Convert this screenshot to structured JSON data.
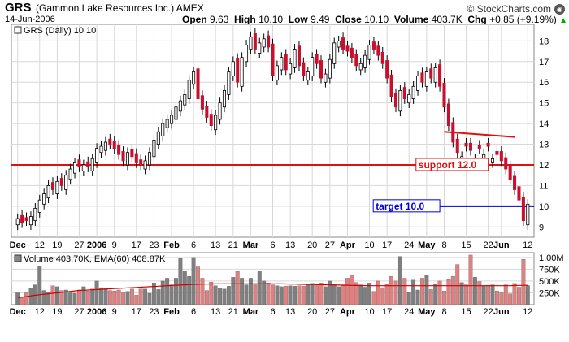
{
  "header": {
    "ticker": "GRS",
    "company": "(Gammon Lake Resources Inc.)",
    "exchange": "AMEX",
    "date": "14-Jun-2006",
    "open_label": "Open",
    "open": "9.63",
    "high_label": "High",
    "high": "10.10",
    "low_label": "Low",
    "low": "9.49",
    "close_label": "Close",
    "close": "10.10",
    "volume_label": "Volume",
    "volume": "403.7K",
    "chg_label": "Chg",
    "chg": "+0.85 (+9.19%)",
    "chg_arrow": "▲",
    "brand": "© StockCharts.com",
    "brand_icon": "stockcharts-logo-icon"
  },
  "colors": {
    "up": "#ffffff",
    "down": "#c8102e",
    "support": "#e01010",
    "target": "#0000dd",
    "trend": "#e01010",
    "vol_up": "#7f7f7f",
    "vol_down": "#e08080",
    "ema": "#d00000",
    "grid": "#d8d8d8",
    "label_bg_support": "#ffffff"
  },
  "chart_data": [
    {
      "type": "candlestick",
      "legend": "GRS (Daily) 10.10",
      "y_ticks": [
        9,
        10,
        11,
        12,
        13,
        14,
        15,
        16,
        17,
        18
      ],
      "ylim": [
        8.5,
        18.8
      ],
      "x_tick_labels": [
        "Dec",
        "12",
        "19",
        "27",
        "2006",
        "9",
        "17",
        "23",
        "Feb",
        "6",
        "13",
        "21",
        "Mar",
        "6",
        "13",
        "20",
        "27",
        "Apr",
        "10",
        "17",
        "24",
        "May",
        "8",
        "15",
        "22",
        "Jun",
        "12"
      ],
      "support": {
        "label": "support 12.0",
        "value": 12.0
      },
      "target": {
        "label": "target 10.0",
        "value": 10.0
      },
      "trendline": {
        "from": {
          "bar": 97,
          "value": 13.6
        },
        "to": {
          "bar": 113,
          "value": 13.35
        }
      },
      "closes": [
        9.4,
        9.2,
        9.3,
        9.5,
        9.9,
        10.3,
        10.6,
        11.0,
        10.8,
        11.2,
        11.0,
        11.5,
        11.8,
        12.1,
        11.9,
        12.0,
        11.9,
        12.3,
        12.8,
        12.9,
        13.1,
        13.0,
        12.8,
        12.5,
        12.2,
        12.6,
        12.4,
        12.1,
        12.0,
        12.2,
        12.6,
        13.2,
        13.6,
        14.0,
        14.2,
        14.4,
        14.8,
        15.1,
        15.4,
        16.1,
        16.5,
        15.2,
        14.7,
        14.3,
        13.9,
        14.4,
        15.0,
        15.6,
        16.5,
        17.0,
        16.0,
        17.2,
        17.8,
        18.2,
        17.6,
        17.9,
        18.1,
        17.7,
        16.3,
        16.8,
        17.2,
        16.6,
        16.9,
        17.6,
        16.8,
        16.3,
        16.5,
        17.2,
        16.9,
        16.2,
        16.4,
        17.1,
        17.9,
        18.0,
        17.6,
        17.5,
        17.2,
        16.8,
        16.9,
        17.3,
        17.8,
        17.6,
        17.3,
        16.9,
        16.2,
        15.3,
        14.8,
        15.6,
        15.2,
        15.4,
        15.8,
        16.3,
        16.0,
        16.5,
        16.2,
        16.7,
        15.8,
        14.8,
        13.9,
        13.1,
        12.6,
        12.4,
        12.9,
        12.7,
        12.3,
        12.8,
        12.5,
        12.9,
        12.3,
        12.5,
        12.2,
        11.8,
        11.3,
        10.8,
        10.3,
        9.3,
        10.1
      ],
      "up_bars": [
        0,
        3,
        4,
        5,
        6,
        7,
        9,
        11,
        12,
        13,
        15,
        17,
        18,
        19,
        20,
        25,
        29,
        30,
        31,
        32,
        33,
        34,
        35,
        36,
        37,
        38,
        39,
        40,
        45,
        46,
        47,
        48,
        49,
        51,
        52,
        53,
        55,
        56,
        59,
        60,
        62,
        63,
        66,
        67,
        70,
        71,
        72,
        73,
        78,
        79,
        80,
        87,
        89,
        90,
        91,
        93,
        95,
        101,
        104,
        106,
        108,
        116
      ]
    },
    {
      "type": "bar",
      "legend": "Volume 403.70K, EMA(60) 408.87K",
      "y_ticks": [
        "250K",
        "500K",
        "750K",
        "1.00M"
      ],
      "tick_values": [
        250,
        500,
        750,
        1000
      ],
      "ylim": [
        0,
        1100
      ],
      "unit": "K shares",
      "ema_values": [
        150,
        160,
        170,
        185,
        200,
        210,
        220,
        230,
        240,
        250,
        260,
        270,
        280,
        290,
        300,
        305,
        310,
        315,
        320,
        325,
        330,
        335,
        340,
        345,
        350,
        355,
        360,
        365,
        370,
        375,
        380,
        385,
        390,
        395,
        400,
        405,
        410,
        415,
        420,
        425,
        430,
        432,
        434,
        436,
        438,
        440,
        440,
        440,
        440,
        440,
        440,
        440,
        440,
        440,
        440,
        440,
        440,
        440,
        440,
        440,
        440,
        438,
        436,
        434,
        432,
        430,
        428,
        426,
        424,
        422,
        420,
        418,
        416,
        414,
        412,
        410,
        408,
        406,
        404,
        402,
        400,
        400,
        400,
        400,
        400,
        400,
        400,
        400,
        400,
        400,
        400,
        400,
        400,
        400,
        400,
        400,
        400,
        400,
        400,
        400,
        400,
        400,
        400,
        400,
        400,
        400,
        400,
        400,
        400,
        400,
        400,
        400,
        400,
        405,
        408,
        409,
        409
      ],
      "values": [
        250,
        150,
        250,
        350,
        420,
        820,
        300,
        260,
        400,
        380,
        300,
        310,
        250,
        240,
        310,
        380,
        290,
        330,
        500,
        360,
        340,
        300,
        290,
        310,
        250,
        280,
        330,
        200,
        330,
        330,
        240,
        460,
        320,
        500,
        560,
        420,
        560,
        980,
        700,
        600,
        1000,
        800,
        560,
        300,
        480,
        400,
        340,
        330,
        390,
        580,
        700,
        560,
        420,
        560,
        440,
        700,
        500,
        460,
        420,
        400,
        380,
        390,
        400,
        390,
        400,
        390,
        440,
        450,
        420,
        460,
        380,
        500,
        440,
        380,
        420,
        560,
        620,
        470,
        420,
        370,
        460,
        280,
        500,
        360,
        430,
        600,
        500,
        1020,
        560,
        270,
        520,
        310,
        560,
        620,
        320,
        430,
        500,
        290,
        530,
        600,
        850,
        470,
        420,
        1050,
        580,
        490,
        390,
        410,
        420,
        290,
        250,
        420,
        230,
        450,
        370,
        960,
        404
      ]
    }
  ]
}
